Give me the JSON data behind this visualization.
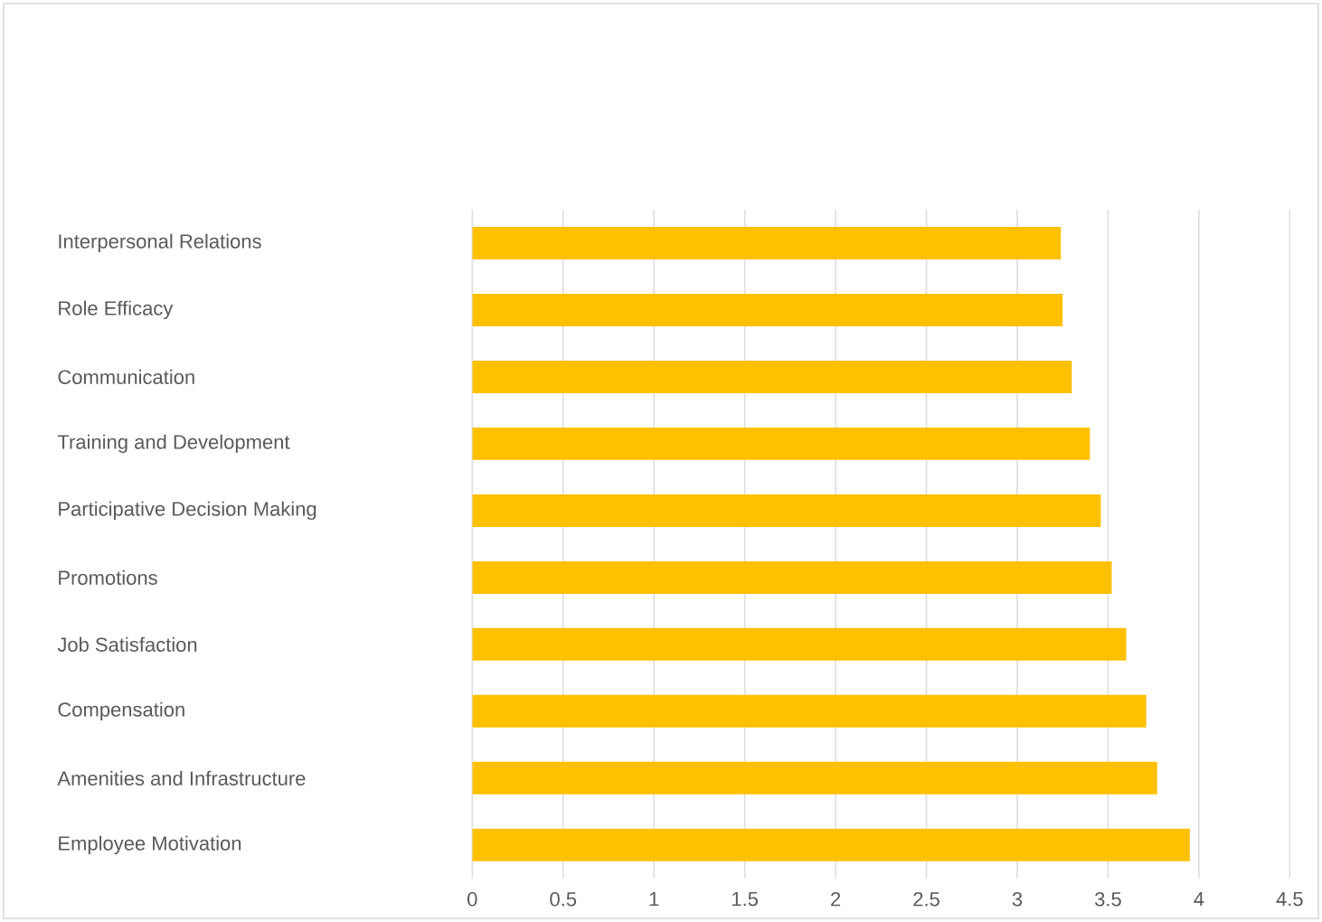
{
  "chart_data": {
    "type": "bar",
    "orientation": "horizontal",
    "categories": [
      "Interpersonal Relations",
      "Role Efficacy",
      "Communication",
      "Training and Development",
      "Participative Decision Making",
      "Promotions",
      "Job Satisfaction",
      "Compensation",
      "Amenities and Infrastructure",
      "Employee Motivation"
    ],
    "values": [
      3.24,
      3.25,
      3.3,
      3.4,
      3.46,
      3.52,
      3.6,
      3.71,
      3.77,
      3.95
    ],
    "color": "#ffc000",
    "xlim": [
      0,
      4.5
    ],
    "xticks": [
      0,
      0.5,
      1,
      1.5,
      2,
      2.5,
      3,
      3.5,
      4,
      4.5
    ],
    "grid": "x"
  }
}
